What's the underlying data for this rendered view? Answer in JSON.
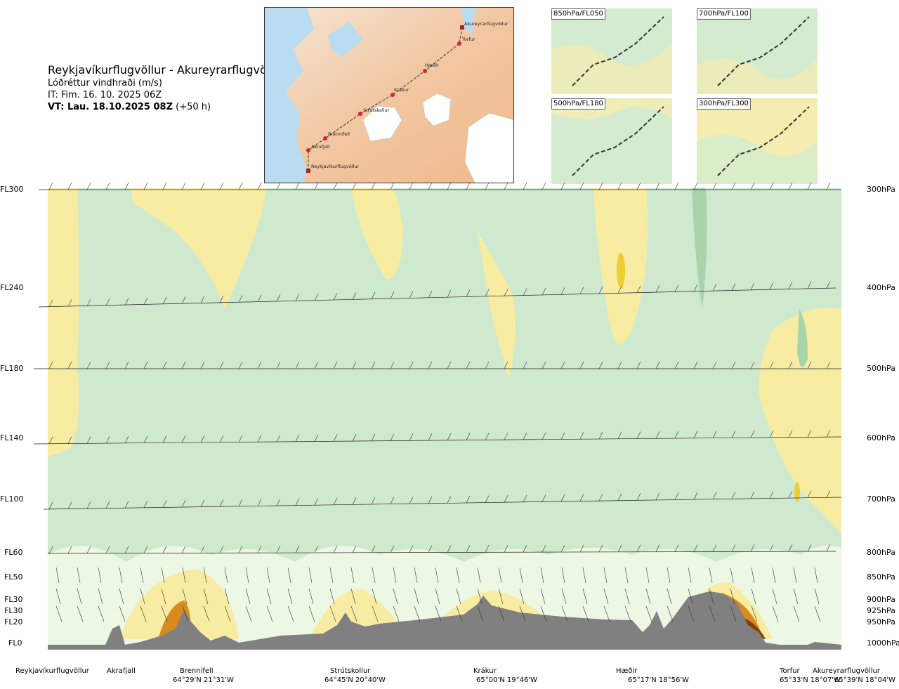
{
  "header": {
    "title": "Reykjavíkurflugvöllur - Akureyrarflugvöllur",
    "subtitle": "Lóðréttur vindhraði (m/s)",
    "issue_time": "IT: Fim. 16. 10. 2025 06Z",
    "valid_time_bold": "VT: Lau. 18.10.2025 08Z",
    "valid_time_offset": "(+50 h)"
  },
  "map_inset": {
    "waypoints": [
      {
        "name": "Akureyrarflugvöllur"
      },
      {
        "name": "Torfur"
      },
      {
        "name": "Hæðir"
      },
      {
        "name": "Krákur"
      },
      {
        "name": "Strútskollur"
      },
      {
        "name": "Brennifell"
      },
      {
        "name": "Akrafjall"
      },
      {
        "name": "Reykjavíkurflugvöllur"
      }
    ]
  },
  "thumbnails": [
    {
      "label": "850hPa/FL050"
    },
    {
      "label": "700hPa/FL100"
    },
    {
      "label": "500hPa/FL180"
    },
    {
      "label": "300hPa/FL300"
    }
  ],
  "levels": [
    {
      "fl": "FL300",
      "hpa": "300hPa"
    },
    {
      "fl": "FL240",
      "hpa": "400hPa"
    },
    {
      "fl": "FL180",
      "hpa": "500hPa"
    },
    {
      "fl": "FL140",
      "hpa": "600hPa"
    },
    {
      "fl": "FL100",
      "hpa": "700hPa"
    },
    {
      "fl": "FL60",
      "hpa": "800hPa"
    },
    {
      "fl": "FL50",
      "hpa": "850hPa"
    },
    {
      "fl": "FL30",
      "hpa": "900hPa"
    },
    {
      "fl": "FL30",
      "hpa": "925hPa"
    },
    {
      "fl": "FL20",
      "hpa": "950hPa"
    },
    {
      "fl": "FL0",
      "hpa": "1000hPa"
    }
  ],
  "locations": [
    {
      "name": "Reykjavíkurflugvöllur",
      "coord": ""
    },
    {
      "name": "Akrafjall",
      "coord": ""
    },
    {
      "name": "Brennifell",
      "coord": "64°29'N 21°31'W"
    },
    {
      "name": "Strútskollur",
      "coord": "64°45'N 20°40'W"
    },
    {
      "name": "Krákur",
      "coord": "65°00'N 19°46'W"
    },
    {
      "name": "Hæðir",
      "coord": "65°17'N 18°56'W"
    },
    {
      "name": "Torfur",
      "coord": "65°33'N 18°07'W"
    },
    {
      "name": "Akureyrarflugvöllur",
      "coord": "65°39'N 18°04'W"
    }
  ],
  "chart_data": {
    "type": "heatmap",
    "title": "Reykjavíkurflugvöllur - Akureyrarflugvöllur",
    "subtitle": "Lóðréttur vindhraði (m/s)",
    "y_axis_left": [
      "FL300",
      "FL240",
      "FL180",
      "FL140",
      "FL100",
      "FL60",
      "FL50",
      "FL30",
      "FL30",
      "FL20",
      "FL0"
    ],
    "y_axis_right": [
      "300hPa",
      "400hPa",
      "500hPa",
      "600hPa",
      "700hPa",
      "800hPa",
      "850hPa",
      "900hPa",
      "925hPa",
      "950hPa",
      "1000hPa"
    ],
    "x_axis_points": [
      "Reykjavíkurflugvöllur",
      "Akrafjall",
      "Brennifell",
      "Strútskollur",
      "Krákur",
      "Hæðir",
      "Torfur",
      "Akureyrarflugvöllur"
    ],
    "colors": {
      "downdraft_strong": "#9fcfa1",
      "downdraft": "#cfe9cf",
      "neutral_low": "#eef8e6",
      "neutral": "#ffffff",
      "updraft_weak": "#fdfbd9",
      "updraft": "#f8eca3",
      "updraft_strong": "#eccd34",
      "updraft_very_strong": "#d98a1f",
      "updraft_extreme": "#8a3d0f",
      "terrain": "#808080"
    },
    "grid": false,
    "legend": "none"
  }
}
